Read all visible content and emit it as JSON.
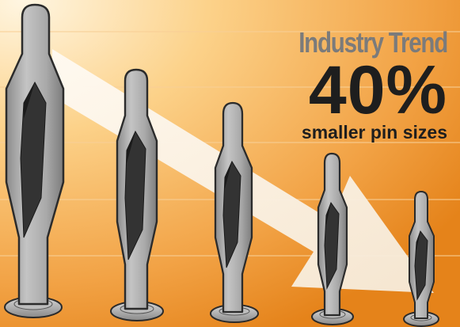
{
  "headline": {
    "title": "Industry Trend",
    "percentage": "40%",
    "subtitle": "smaller pin sizes"
  },
  "colors": {
    "background_light": "#fde0a0",
    "background_dark": "#e8861e",
    "arrow": "#fbf4ea",
    "pin_body": "#a8a8a8",
    "pin_outline": "#2b2b2b",
    "pin_slot": "#303030",
    "gridline": "#f7c98a"
  },
  "pins": [
    {
      "name": "pin-1",
      "relative_size": 1.0
    },
    {
      "name": "pin-2",
      "relative_size": 0.78
    },
    {
      "name": "pin-3",
      "relative_size": 0.64
    },
    {
      "name": "pin-4",
      "relative_size": 0.52
    },
    {
      "name": "pin-5",
      "relative_size": 0.42
    }
  ]
}
